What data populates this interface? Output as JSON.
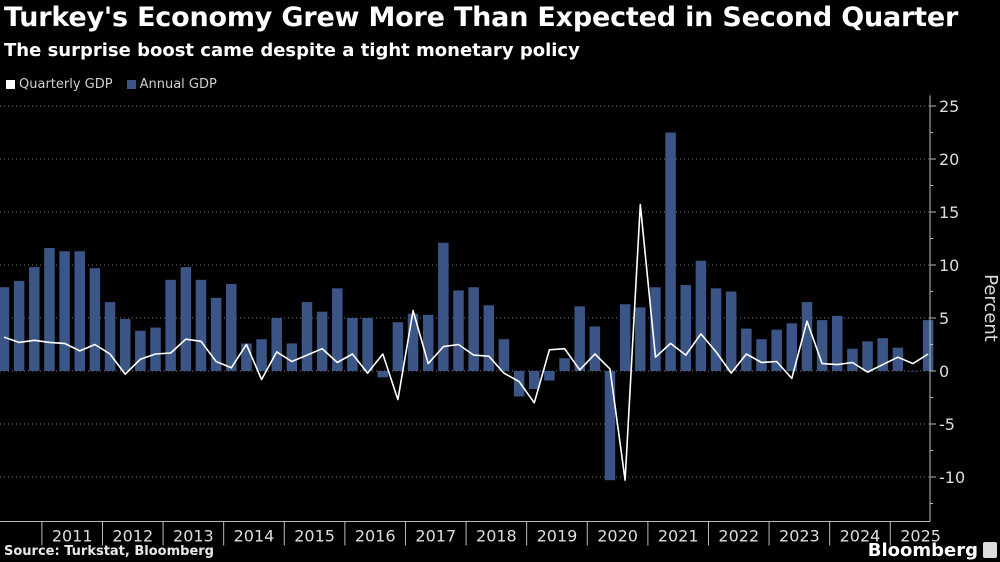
{
  "header": {
    "title": "Turkey's Economy Grew More Than Expected in Second Quarter",
    "subtitle": "The surprise boost came despite a tight monetary policy"
  },
  "footer": {
    "source": "Source: Turkstat, Bloomberg",
    "brand": "Bloomberg"
  },
  "colors": {
    "background": "#000000",
    "bar": "#3b5587",
    "line": "#ffffff",
    "grid": "#777777"
  },
  "chart_data": {
    "type": "bar",
    "title": "Turkey's Economy Grew More Than Expected in Second Quarter",
    "subtitle": "The surprise boost came despite a tight monetary policy",
    "ylabel": "Percent",
    "ylim": [
      -14,
      26
    ],
    "yticks": [
      25,
      20,
      15,
      10,
      5,
      0,
      -5,
      -10
    ],
    "grid": true,
    "legend": "top-left",
    "year_labels": [
      "2011",
      "2012",
      "2013",
      "2014",
      "2015",
      "2016",
      "2017",
      "2018",
      "2019",
      "2020",
      "2021",
      "2022",
      "2023",
      "2024",
      "2025"
    ],
    "quarters_start": "2010 Q2",
    "series": [
      {
        "name": "Quarterly GDP",
        "type": "line",
        "values": [
          3.2,
          2.7,
          2.9,
          2.7,
          2.6,
          1.9,
          2.5,
          1.6,
          -0.3,
          1.1,
          1.6,
          1.7,
          3.0,
          2.8,
          0.9,
          0.3,
          2.5,
          -0.8,
          1.8,
          0.9,
          1.5,
          2.1,
          0.8,
          1.6,
          -0.2,
          1.6,
          -2.7,
          5.7,
          0.7,
          2.3,
          2.5,
          1.5,
          1.4,
          -0.2,
          -1.0,
          -3.0,
          2.0,
          2.1,
          0.1,
          1.6,
          0.2,
          -10.3,
          15.7,
          1.3,
          2.6,
          1.5,
          3.5,
          1.8,
          -0.2,
          1.6,
          0.8,
          0.9,
          -0.7,
          4.7,
          0.7,
          0.6,
          0.8,
          -0.1,
          0.6,
          1.3,
          0.7,
          1.6
        ]
      },
      {
        "name": "Annual GDP",
        "type": "bar",
        "values": [
          7.9,
          8.5,
          9.8,
          11.6,
          11.3,
          11.3,
          9.7,
          6.5,
          4.9,
          3.8,
          4.1,
          8.6,
          9.8,
          8.6,
          6.9,
          8.2,
          2.6,
          3.0,
          5.0,
          2.6,
          6.5,
          5.6,
          7.8,
          5.0,
          5.0,
          -0.6,
          4.6,
          5.4,
          5.3,
          12.1,
          7.6,
          7.9,
          6.2,
          3.0,
          -2.4,
          -1.7,
          -0.9,
          1.2,
          6.1,
          4.2,
          -10.3,
          6.3,
          6.0,
          7.9,
          22.5,
          8.1,
          10.4,
          7.8,
          7.5,
          4.0,
          3.0,
          3.9,
          4.5,
          6.5,
          4.8,
          5.2,
          2.1,
          2.8,
          3.1,
          2.2,
          0.0,
          4.8
        ]
      }
    ]
  }
}
